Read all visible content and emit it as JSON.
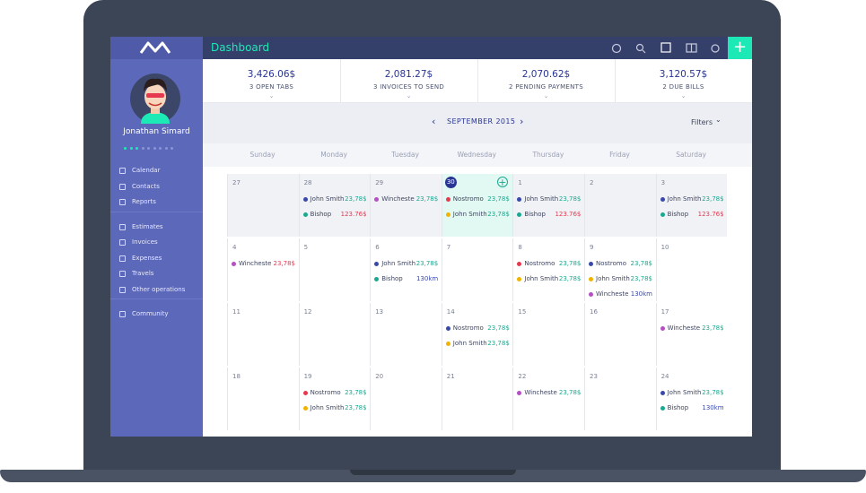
{
  "header": {
    "title": "Dashboard"
  },
  "user": {
    "name": "Jonathan Simard"
  },
  "nav": {
    "groups": [
      [
        "Calendar",
        "Contacts",
        "Reports"
      ],
      [
        "Estimates",
        "Invoices",
        "Expenses",
        "Travels",
        "Other operations"
      ],
      [
        "Community"
      ]
    ]
  },
  "stats": [
    {
      "value": "3,426.06$",
      "label": "3 OPEN TABS"
    },
    {
      "value": "2,081.27$",
      "label": "3 INVOICES TO SEND"
    },
    {
      "value": "2,070.62$",
      "label": "2 PENDING PAYMENTS"
    },
    {
      "value": "3,120.57$",
      "label": "2 DUE BILLS"
    }
  ],
  "calendar": {
    "month": "SEPTEMBER 2015",
    "filters": "Filters",
    "weekdays": [
      "Sunday",
      "Monday",
      "Tuesday",
      "Wednesday",
      "Thursday",
      "Friday",
      "Saturday"
    ],
    "weeks": [
      [
        {
          "day": "27",
          "events": []
        },
        {
          "day": "28",
          "events": [
            {
              "name": "John Smith",
              "amount": "23,78$",
              "color": "#3949ab",
              "amount_color": "#1ba88f"
            },
            {
              "name": "Bishop",
              "amount": "123.76$",
              "color": "#1ba88f",
              "amount_color": "#e53950"
            }
          ]
        },
        {
          "day": "29",
          "events": [
            {
              "name": "Wincheste",
              "amount": "23,78$",
              "color": "#b44fc4",
              "amount_color": "#1ba88f"
            }
          ]
        },
        {
          "day": "30",
          "today": true,
          "events": [
            {
              "name": "Nostromo",
              "amount": "23,78$",
              "color": "#e53950",
              "amount_color": "#1ba88f"
            },
            {
              "name": "John Smith",
              "amount": "23,78$",
              "color": "#f0b400",
              "amount_color": "#1ba88f"
            }
          ]
        },
        {
          "day": "1",
          "events": [
            {
              "name": "John Smith",
              "amount": "23,78$",
              "color": "#3949ab",
              "amount_color": "#1ba88f"
            },
            {
              "name": "Bishop",
              "amount": "123.76$",
              "color": "#1ba88f",
              "amount_color": "#e53950"
            }
          ]
        },
        {
          "day": "2",
          "events": []
        },
        {
          "day": "3",
          "events": [
            {
              "name": "John Smith",
              "amount": "23,78$",
              "color": "#3949ab",
              "amount_color": "#1ba88f"
            },
            {
              "name": "Bishop",
              "amount": "123.76$",
              "color": "#1ba88f",
              "amount_color": "#e53950"
            }
          ]
        }
      ],
      [
        {
          "day": "4",
          "events": [
            {
              "name": "Wincheste",
              "amount": "23,78$",
              "color": "#b44fc4",
              "amount_color": "#e53950"
            }
          ]
        },
        {
          "day": "5",
          "events": []
        },
        {
          "day": "6",
          "events": [
            {
              "name": "John Smith",
              "amount": "23,78$",
              "color": "#3949ab",
              "amount_color": "#1ba88f"
            },
            {
              "name": "Bishop",
              "amount": "130km",
              "color": "#1ba88f",
              "amount_color": "#3949ab"
            }
          ]
        },
        {
          "day": "7",
          "events": []
        },
        {
          "day": "8",
          "events": [
            {
              "name": "Nostromo",
              "amount": "23,78$",
              "color": "#e53950",
              "amount_color": "#1ba88f"
            },
            {
              "name": "John Smith",
              "amount": "23,78$",
              "color": "#f0b400",
              "amount_color": "#1ba88f"
            }
          ]
        },
        {
          "day": "9",
          "events": [
            {
              "name": "Nostromo",
              "amount": "23,78$",
              "color": "#3949ab",
              "amount_color": "#1ba88f"
            },
            {
              "name": "John Smith",
              "amount": "23,78$",
              "color": "#f0b400",
              "amount_color": "#1ba88f"
            },
            {
              "name": "Wincheste",
              "amount": "130km",
              "color": "#b44fc4",
              "amount_color": "#3949ab"
            }
          ]
        },
        {
          "day": "10",
          "events": []
        }
      ],
      [
        {
          "day": "11",
          "events": []
        },
        {
          "day": "12",
          "events": []
        },
        {
          "day": "13",
          "events": []
        },
        {
          "day": "14",
          "events": [
            {
              "name": "Nostromo",
              "amount": "23,78$",
              "color": "#3949ab",
              "amount_color": "#1ba88f"
            },
            {
              "name": "John Smith",
              "amount": "23,78$",
              "color": "#f0b400",
              "amount_color": "#1ba88f"
            }
          ]
        },
        {
          "day": "15",
          "events": []
        },
        {
          "day": "16",
          "events": []
        },
        {
          "day": "17",
          "events": [
            {
              "name": "Wincheste",
              "amount": "23,78$",
              "color": "#b44fc4",
              "amount_color": "#1ba88f"
            }
          ]
        }
      ],
      [
        {
          "day": "18",
          "events": []
        },
        {
          "day": "19",
          "events": [
            {
              "name": "Nostromo",
              "amount": "23,78$",
              "color": "#e53950",
              "amount_color": "#1ba88f"
            },
            {
              "name": "John Smith",
              "amount": "23,78$",
              "color": "#f0b400",
              "amount_color": "#1ba88f"
            }
          ]
        },
        {
          "day": "20",
          "events": []
        },
        {
          "day": "21",
          "events": []
        },
        {
          "day": "22",
          "events": [
            {
              "name": "Wincheste",
              "amount": "23,78$",
              "color": "#b44fc4",
              "amount_color": "#1ba88f"
            }
          ]
        },
        {
          "day": "23",
          "events": []
        },
        {
          "day": "24",
          "events": [
            {
              "name": "John Smith",
              "amount": "23,78$",
              "color": "#3949ab",
              "amount_color": "#1ba88f"
            },
            {
              "name": "Bishop",
              "amount": "130km",
              "color": "#1ba88f",
              "amount_color": "#3949ab"
            }
          ]
        }
      ]
    ]
  }
}
